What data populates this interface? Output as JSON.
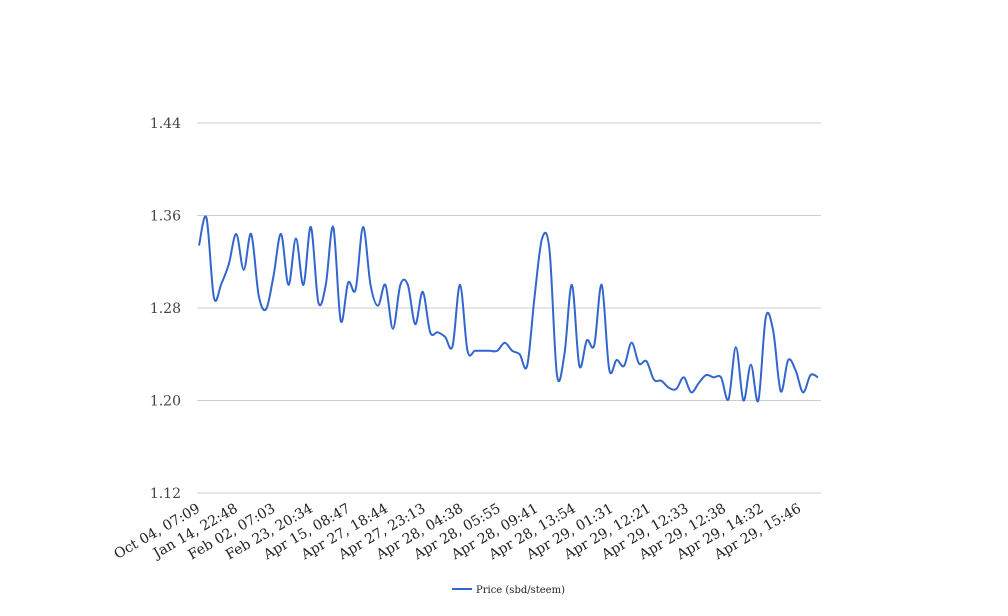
{
  "chart_data": {
    "type": "line",
    "ylim": [
      1.12,
      1.44
    ],
    "yticks": [
      "1.12",
      "1.20",
      "1.28",
      "1.36",
      "1.44"
    ],
    "grid": true,
    "legend_position": "bottom",
    "x_ticks": [
      "Oct 04, 07:09",
      "Jan 14, 22:48",
      "Feb 02, 07:03",
      "Feb 23, 20:34",
      "Apr 15, 08:47",
      "Apr 27, 18:44",
      "Apr 27, 23:13",
      "Apr 28, 04:38",
      "Apr 28, 05:55",
      "Apr 28, 09:41",
      "Apr 28, 13:54",
      "Apr 29, 01:31",
      "Apr 29, 12:21",
      "Apr 29, 12:33",
      "Apr 29, 12:38",
      "Apr 29, 14:32",
      "Apr 29, 15:46"
    ],
    "series": [
      {
        "name": "Price (sbd/steem)",
        "color": "#3366cc",
        "values": [
          1.334,
          1.358,
          1.289,
          1.301,
          1.318,
          1.344,
          1.313,
          1.344,
          1.291,
          1.279,
          1.308,
          1.344,
          1.3,
          1.34,
          1.3,
          1.35,
          1.285,
          1.3,
          1.35,
          1.269,
          1.302,
          1.296,
          1.35,
          1.3,
          1.282,
          1.3,
          1.262,
          1.3,
          1.3,
          1.266,
          1.294,
          1.259,
          1.259,
          1.255,
          1.247,
          1.3,
          1.243,
          1.243,
          1.243,
          1.243,
          1.243,
          1.25,
          1.243,
          1.24,
          1.23,
          1.29,
          1.34,
          1.33,
          1.222,
          1.24,
          1.3,
          1.23,
          1.252,
          1.248,
          1.3,
          1.227,
          1.235,
          1.23,
          1.25,
          1.232,
          1.234,
          1.218,
          1.217,
          1.211,
          1.21,
          1.22,
          1.207,
          1.215,
          1.222,
          1.22,
          1.22,
          1.201,
          1.246,
          1.2,
          1.231,
          1.2,
          1.272,
          1.26,
          1.208,
          1.235,
          1.226,
          1.207,
          1.222,
          1.22
        ]
      }
    ]
  }
}
